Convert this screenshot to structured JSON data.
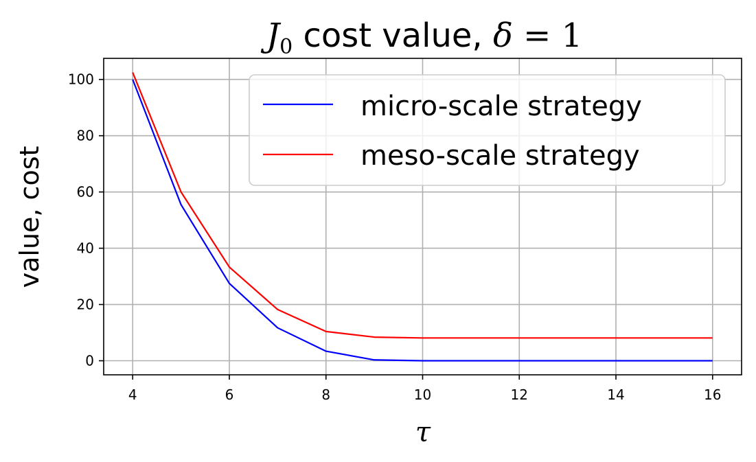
{
  "chart_data": {
    "type": "line",
    "title": {
      "symbol": "J",
      "subscript": "0",
      "text": " cost value, ",
      "param_symbol": "δ",
      "param_value": " = 1"
    },
    "xlabel": "τ",
    "ylabel": "value, cost",
    "xlim": [
      3.4,
      16.6
    ],
    "ylim": [
      -5,
      107.5
    ],
    "xticks": [
      4,
      6,
      8,
      10,
      12,
      14,
      16
    ],
    "yticks": [
      0,
      20,
      40,
      60,
      80,
      100
    ],
    "grid": true,
    "legend_position": "top-right",
    "x": [
      4,
      5,
      6,
      7,
      8,
      9,
      10,
      11,
      12,
      13,
      14,
      15,
      16
    ],
    "series": [
      {
        "name": "micro-scale strategy",
        "color": "#0000ff",
        "values": [
          100,
          55.5,
          27.5,
          11.7,
          3.4,
          0.3,
          0,
          0,
          0,
          0,
          0,
          0,
          0
        ]
      },
      {
        "name": "meso-scale strategy",
        "color": "#ff0000",
        "values": [
          102.5,
          60,
          33.3,
          18.2,
          10.4,
          8.4,
          8.1,
          8.1,
          8.1,
          8.1,
          8.1,
          8.1,
          8.1
        ]
      }
    ]
  }
}
